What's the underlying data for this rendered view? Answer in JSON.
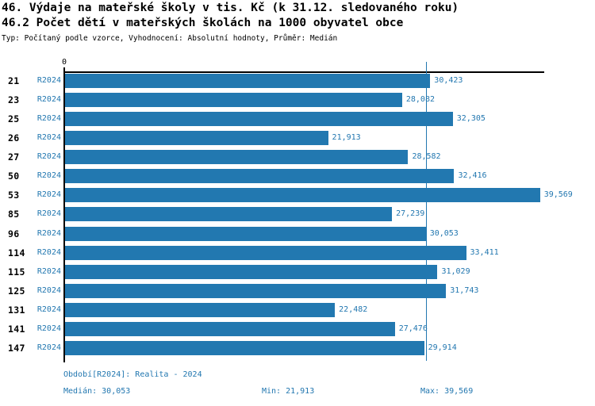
{
  "chart_data": {
    "type": "bar",
    "orientation": "horizontal",
    "title_line1": "46. Výdaje na mateřské školy v tis. Kč (k 31.12. sledovaného roku)",
    "title_line2": "46.2 Počet dětí v mateřských školách na 1000 obyvatel obce",
    "subtitle": "Typ: Počítaný podle vzorce, Vyhodnocení: Absolutní hodnoty, Průměr: Medián",
    "zero_tick_label": "0",
    "xlim": [
      0,
      39920
    ],
    "grid": false,
    "legend": "none",
    "bar_color": "#2278b0",
    "median_line_color": "#2277b0",
    "period_label": "R2024",
    "median_value": 30053,
    "categories": [
      "21",
      "23",
      "25",
      "26",
      "27",
      "50",
      "53",
      "85",
      "96",
      "114",
      "115",
      "125",
      "131",
      "141",
      "147"
    ],
    "rows": [
      {
        "id": "21",
        "value": 30423,
        "label": "30,423"
      },
      {
        "id": "23",
        "value": 28082,
        "label": "28,082"
      },
      {
        "id": "25",
        "value": 32305,
        "label": "32,305"
      },
      {
        "id": "26",
        "value": 21913,
        "label": "21,913"
      },
      {
        "id": "27",
        "value": 28582,
        "label": "28,582"
      },
      {
        "id": "50",
        "value": 32416,
        "label": "32,416"
      },
      {
        "id": "53",
        "value": 39569,
        "label": "39,569"
      },
      {
        "id": "85",
        "value": 27239,
        "label": "27,239"
      },
      {
        "id": "96",
        "value": 30053,
        "label": "30,053"
      },
      {
        "id": "114",
        "value": 33411,
        "label": "33,411"
      },
      {
        "id": "115",
        "value": 31029,
        "label": "31,029"
      },
      {
        "id": "125",
        "value": 31743,
        "label": "31,743"
      },
      {
        "id": "131",
        "value": 22482,
        "label": "22,482"
      },
      {
        "id": "141",
        "value": 27476,
        "label": "27,476"
      },
      {
        "id": "147",
        "value": 29914,
        "label": "29,914"
      }
    ]
  },
  "footer": {
    "period_info": "Období[R2024]: Realita - 2024",
    "median": "Medián: 30,053",
    "min": "Min: 21,913",
    "max": "Max: 39,569"
  }
}
